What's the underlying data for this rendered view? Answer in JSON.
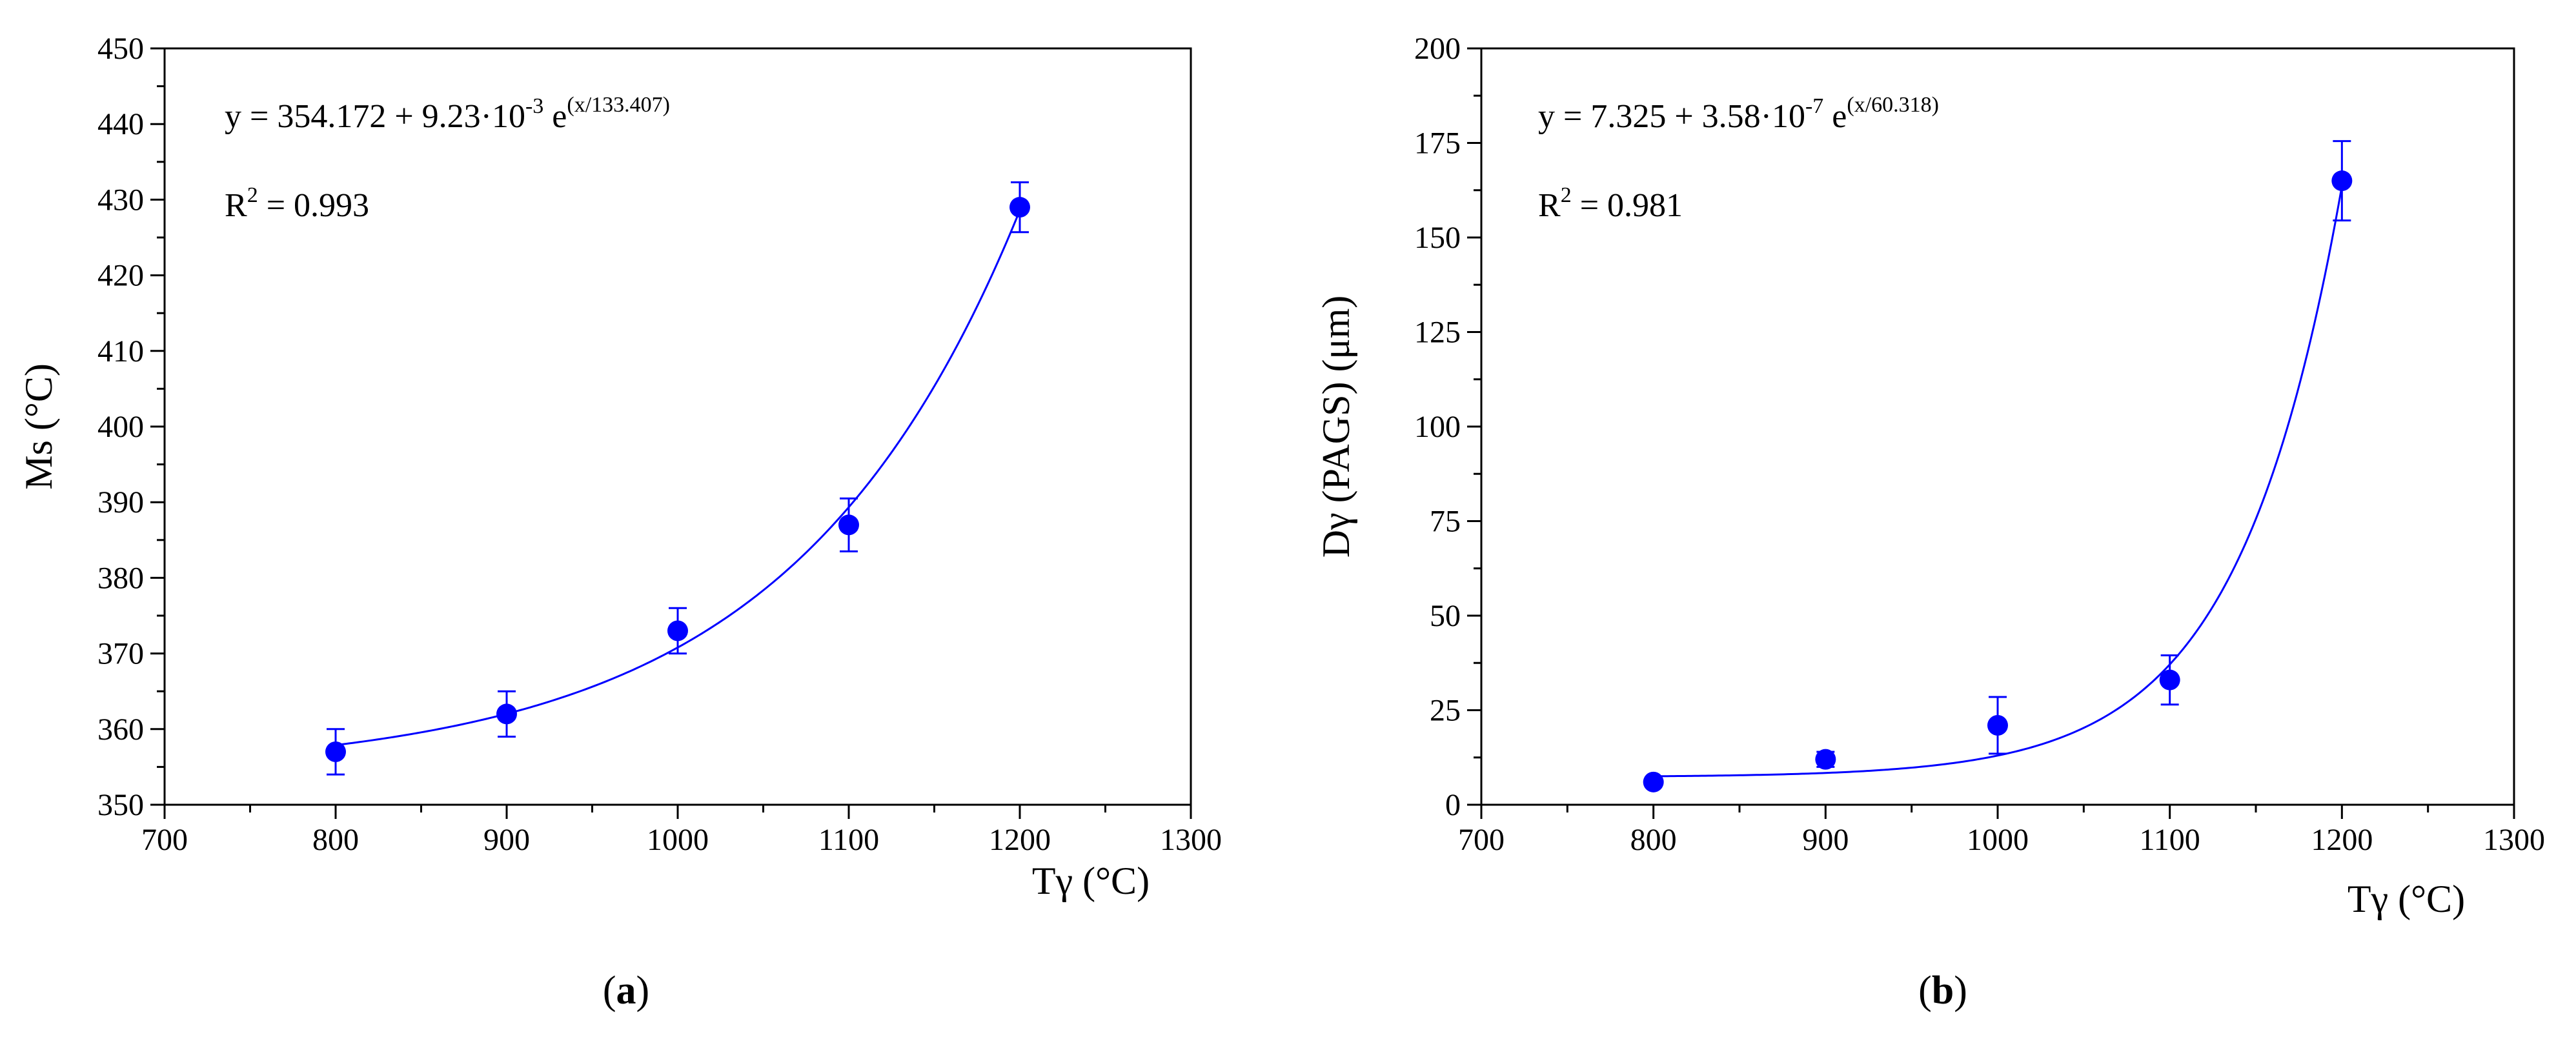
{
  "chart_data": [
    {
      "type": "scatter",
      "panel_label": {
        "open": "(",
        "letter": "a",
        "close": ")"
      },
      "xlabel": "Tγ (°C)",
      "ylabel": "Ms (°C)",
      "xlim": [
        700,
        1300
      ],
      "ylim": [
        350,
        450
      ],
      "xticks": [
        700,
        800,
        900,
        1000,
        1100,
        1200,
        1300
      ],
      "yticks": [
        350,
        360,
        370,
        380,
        390,
        400,
        410,
        420,
        430,
        440,
        450
      ],
      "series": [
        {
          "name": "Ms",
          "x": [
            800,
            900,
            1000,
            1100,
            1200
          ],
          "y": [
            357,
            362,
            373,
            387,
            429
          ],
          "yerr": [
            3,
            3,
            3,
            3.5,
            3.3
          ]
        }
      ],
      "fit": {
        "a": 354.172,
        "b": 0.00923,
        "c": 133.407
      },
      "equation": {
        "lhs": "y = 354.172 + 9.23·10",
        "exp1": "-3",
        "mid": " e",
        "exp2": "(x/133.407)"
      },
      "r2": {
        "pre": "R",
        "sup": "2",
        "post": " = 0.993"
      },
      "color": "#0000ff"
    },
    {
      "type": "scatter",
      "panel_label": {
        "open": "(",
        "letter": "b",
        "close": ")"
      },
      "xlabel": "Tγ (°C)",
      "ylabel": "Dγ (PAGS) (μm)",
      "xlim": [
        700,
        1300
      ],
      "ylim": [
        0,
        200
      ],
      "xticks": [
        700,
        800,
        900,
        1000,
        1100,
        1200,
        1300
      ],
      "yticks": [
        0,
        25,
        50,
        75,
        100,
        125,
        150,
        175,
        200
      ],
      "series": [
        {
          "name": "PAGS",
          "x": [
            800,
            900,
            1000,
            1100,
            1200
          ],
          "y": [
            6,
            12,
            21,
            33,
            165
          ],
          "yerr": [
            1,
            2,
            7.5,
            6.5,
            10.5
          ]
        }
      ],
      "fit": {
        "a": 7.325,
        "b": 3.58e-07,
        "c": 60.318
      },
      "equation": {
        "lhs": "y = 7.325 + 3.58·10",
        "exp1": "-7",
        "mid": " e",
        "exp2": "(x/60.318)"
      },
      "r2": {
        "pre": "R",
        "sup": "2",
        "post": " = 0.981"
      },
      "color": "#0000ff"
    }
  ]
}
